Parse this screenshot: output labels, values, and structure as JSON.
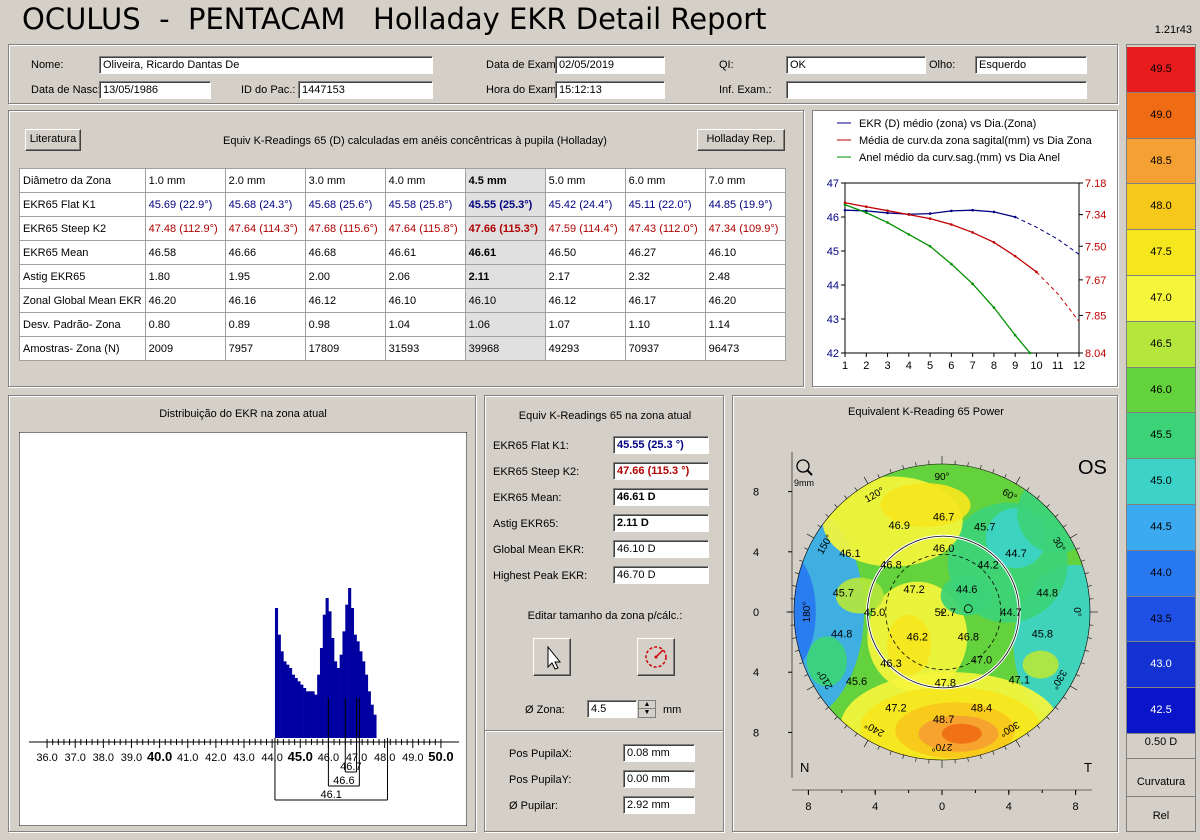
{
  "header": {
    "brand": "OCULUS  -  PENTACAM",
    "report": "Holladay EKR Detail Report",
    "version": "1.21r43"
  },
  "patient": {
    "name_label": "Nome:",
    "name": "Oliveira, Ricardo Dantas De",
    "dob_label": "Data de Nasc:",
    "dob": "13/05/1986",
    "id_label": "ID do Pac.:",
    "id": "1447153",
    "exam_date_label": "Data de Exam:",
    "exam_date": "02/05/2019",
    "exam_time_label": "Hora do Exam:",
    "exam_time": "15:12:13",
    "qi_label": "QI:",
    "qi": "OK",
    "info_label": "Inf. Exam.:",
    "info": "",
    "eye_label": "Olho:",
    "eye": "Esquerdo"
  },
  "table_panel": {
    "literature_button": "Literatura",
    "caption": "Equiv K-Readings 65 (D) calculadas em anéis concêntricas à pupila (Holladay)",
    "holladay_button": "Holladay Rep.",
    "columns": [
      "Diâmetro da Zona",
      "1.0 mm",
      "2.0 mm",
      "3.0 mm",
      "4.0 mm",
      "4.5 mm",
      "5.0 mm",
      "6.0 mm",
      "7.0 mm"
    ],
    "rows": [
      {
        "label": "EKR65 Flat K1",
        "color": "blue",
        "values": [
          "45.69  (22.9°)",
          "45.68  (24.3°)",
          "45.68  (25.6°)",
          "45.58  (25.8°)",
          "45.55  (25.3°)",
          "45.42  (24.4°)",
          "45.11  (22.0°)",
          "44.85  (19.9°)"
        ]
      },
      {
        "label": "EKR65 Steep K2",
        "color": "red",
        "values": [
          "47.48  (112.9°)",
          "47.64  (114.3°)",
          "47.68  (115.6°)",
          "47.64  (115.8°)",
          "47.66  (115.3°)",
          "47.59  (114.4°)",
          "47.43  (112.0°)",
          "47.34  (109.9°)"
        ]
      },
      {
        "label": "EKR65 Mean",
        "color": "",
        "values": [
          "46.58",
          "46.66",
          "46.68",
          "46.61",
          "46.61",
          "46.50",
          "46.27",
          "46.10"
        ]
      },
      {
        "label": "Astig EKR65",
        "color": "",
        "values": [
          "1.80",
          "1.95",
          "2.00",
          "2.06",
          "2.11",
          "2.17",
          "2.32",
          "2.48"
        ]
      },
      {
        "label": "Zonal Global Mean EKR",
        "color": "",
        "values": [
          "46.20",
          "46.16",
          "46.12",
          "46.10",
          "46.10",
          "46.12",
          "46.17",
          "46.20"
        ]
      },
      {
        "label": "Desv. Padrão- Zona",
        "color": "",
        "values": [
          "0.80",
          "0.89",
          "0.98",
          "1.04",
          "1.06",
          "1.07",
          "1.10",
          "1.14"
        ]
      },
      {
        "label": "Amostras- Zona (N)",
        "color": "",
        "values": [
          "2009",
          "7957",
          "17809",
          "31593",
          "39968",
          "49293",
          "70937",
          "96473"
        ]
      }
    ]
  },
  "chart_data": [
    {
      "type": "line",
      "legend": [
        "EKR (D) médio (zona) vs Dia.(Zona)",
        "Média de curv.da zona sagital(mm) vs Dia Zona",
        "Anel médio da curv.sag.(mm) vs Dia Anel"
      ],
      "x_ticks": [
        "1",
        "2",
        "3",
        "4",
        "5",
        "6",
        "7",
        "8",
        "9",
        "10",
        "11",
        "12"
      ],
      "y_left_ticks": [
        "47",
        "46",
        "45",
        "44",
        "43",
        "42"
      ],
      "y_right_ticks": [
        "7.18",
        "7.34",
        "7.50",
        "7.67",
        "7.85",
        "8.04"
      ],
      "xlim": [
        1,
        12
      ],
      "ylim_left": [
        42,
        47
      ],
      "ylim_right": [
        7.18,
        8.04
      ],
      "series": [
        {
          "name": "EKR (D) médio (zona) vs Dia.(Zona)",
          "color": "#000080",
          "axis": "left",
          "x": [
            1,
            2,
            3,
            4,
            5,
            6,
            7,
            8,
            9,
            10,
            11,
            12
          ],
          "y": [
            46.2,
            46.18,
            46.12,
            46.08,
            46.1,
            46.18,
            46.2,
            46.15,
            46.0,
            45.7,
            45.35,
            44.9
          ],
          "solid_until": 9
        },
        {
          "name": "Média de curv.da zona sagital(mm) vs Dia Zona",
          "color": "#c00000",
          "axis": "right",
          "x": [
            1,
            2,
            3,
            4,
            5,
            6,
            7,
            8,
            9,
            10,
            11,
            12
          ],
          "y": [
            7.28,
            7.3,
            7.32,
            7.34,
            7.36,
            7.39,
            7.43,
            7.48,
            7.55,
            7.63,
            7.74,
            7.88
          ],
          "solid_until": 10
        },
        {
          "name": "Anel médio da curv.sag.(mm) vs Dia Anel",
          "color": "#009000",
          "axis": "right",
          "x": [
            1,
            2,
            3,
            4,
            5,
            6,
            7,
            8,
            9,
            9.7
          ],
          "y": [
            7.29,
            7.33,
            7.38,
            7.44,
            7.5,
            7.59,
            7.69,
            7.81,
            7.95,
            8.04
          ],
          "solid_until": 9.7
        }
      ]
    },
    {
      "type": "bar",
      "title": "Distribuição do EKR na zona atual",
      "x_tick_labels": [
        "36.0",
        "37.0",
        "38.0",
        "39.0",
        "40.0",
        "41.0",
        "42.0",
        "43.0",
        "44.0",
        "45.0",
        "46.0",
        "47.0",
        "48.0",
        "49.0",
        "50.0"
      ],
      "bold_ticks": [
        "40.0",
        "45.0",
        "50.0"
      ],
      "xlim": [
        35.5,
        50.5
      ],
      "bins_start": 44.1,
      "bin_width": 0.1,
      "values": [
        39,
        31,
        26,
        23,
        22,
        21,
        19,
        18,
        17,
        16,
        15,
        14,
        14,
        14,
        13,
        19,
        27,
        37,
        42,
        38,
        30,
        23,
        21,
        25,
        32,
        40,
        45,
        39,
        31,
        29,
        26,
        23,
        19,
        14,
        10,
        7
      ],
      "annotations": [
        "46.7",
        "46.6",
        "46.1"
      ]
    }
  ],
  "readings_panel": {
    "title": "Equiv K-Readings 65 na zona atual",
    "flat_label": "EKR65 Flat K1:",
    "flat": "45.55  (25.3 °)",
    "steep_label": "EKR65 Steep K2:",
    "steep": "47.66  (115.3 °)",
    "mean_label": "EKR65 Mean:",
    "mean": "46.61 D",
    "astig_label": "Astig EKR65:",
    "astig": "2.11 D",
    "global_label": "Global Mean EKR:",
    "global": "46.10 D",
    "peak_label": "Highest Peak EKR:",
    "peak": "46.70 D",
    "edit_label": "Editar tamanho da zona p/cálc.:",
    "zone_label": "Ø Zona:",
    "zone_value": "4.5",
    "zone_unit": "mm",
    "pupil_x_label": "Pos PupilaX:",
    "pupil_x": "0.08 mm",
    "pupil_y_label": "Pos PupilaY:",
    "pupil_y": "0.00 mm",
    "pupil_d_label": "Ø Pupilar:",
    "pupil_d": "2.92 mm"
  },
  "map_panel": {
    "title": "Equivalent K-Reading 65 Power",
    "eye": "OS",
    "zoom_label": "9mm",
    "nasal": "N",
    "temporal": "T",
    "axis_ticks": [
      "8",
      "4",
      "0",
      "4",
      "8"
    ],
    "angles": [
      "90°",
      "60°",
      "30°",
      "0°",
      "330°",
      "300°",
      "270°",
      "240°",
      "210°",
      "180°",
      "150°",
      "120°"
    ],
    "values": [
      "46.9",
      "46.7",
      "45.7",
      "46.1",
      "46.0",
      "44.7",
      "46.8",
      "44.2",
      "45.7",
      "47.2",
      "44.6",
      "44.8",
      "45.0",
      "52.7",
      "44.7",
      "44.8",
      "46.2",
      "46.8",
      "45.8",
      "46.3",
      "47.0",
      "45.6",
      "47.8",
      "47.1",
      "47.2",
      "48.4",
      "48.7"
    ]
  },
  "scale": {
    "values": [
      "49.5",
      "49.0",
      "48.5",
      "48.0",
      "47.5",
      "47.0",
      "46.5",
      "46.0",
      "45.5",
      "45.0",
      "44.5",
      "44.0",
      "43.5",
      "43.0",
      "42.5"
    ],
    "colors": [
      "#e81c1c",
      "#f06c14",
      "#f5a032",
      "#f7c81c",
      "#f5e61e",
      "#f5f53c",
      "#b4e63c",
      "#64d23c",
      "#3cd278",
      "#3cd2c8",
      "#3caaf0",
      "#2878f0",
      "#1e50e6",
      "#1432d2",
      "#0a14c8"
    ],
    "step": "0.50 D",
    "mode": "Curvatura",
    "rel": "Rel"
  }
}
